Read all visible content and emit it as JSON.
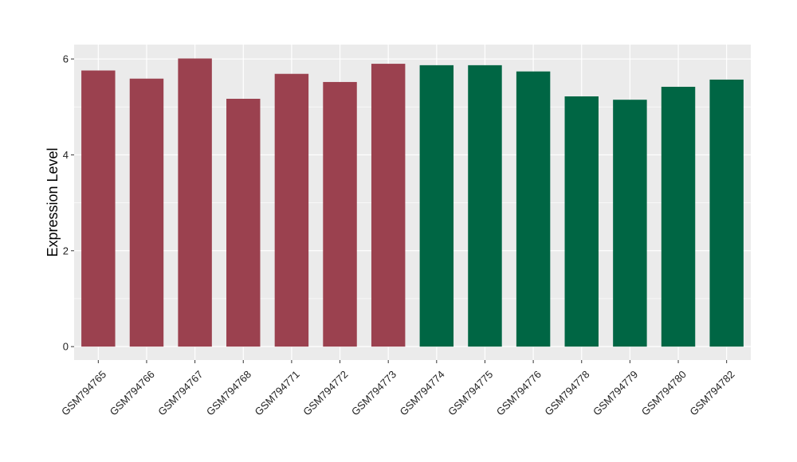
{
  "chart_data": {
    "type": "bar",
    "ylabel": "Expression Level",
    "xlabel": "",
    "ylim": [
      -0.28,
      6.3
    ],
    "yticks": [
      0,
      2,
      4,
      6
    ],
    "grid": true,
    "legend": "none",
    "categories": [
      "GSM794765",
      "GSM794766",
      "GSM794767",
      "GSM794768",
      "GSM794771",
      "GSM794772",
      "GSM794773",
      "GSM794774",
      "GSM794775",
      "GSM794776",
      "GSM794778",
      "GSM794779",
      "GSM794780",
      "GSM794782"
    ],
    "values": [
      5.76,
      5.59,
      6.01,
      5.17,
      5.69,
      5.52,
      5.9,
      5.87,
      5.87,
      5.74,
      5.22,
      5.15,
      5.42,
      5.57
    ],
    "bar_colors": [
      "#9b414f",
      "#9b414f",
      "#9b414f",
      "#9b414f",
      "#9b414f",
      "#9b414f",
      "#9b414f",
      "#006644",
      "#006644",
      "#006644",
      "#006644",
      "#006644",
      "#006644",
      "#006644"
    ],
    "panel_background": "#ebebeb",
    "gridline_color": "#ffffff"
  }
}
